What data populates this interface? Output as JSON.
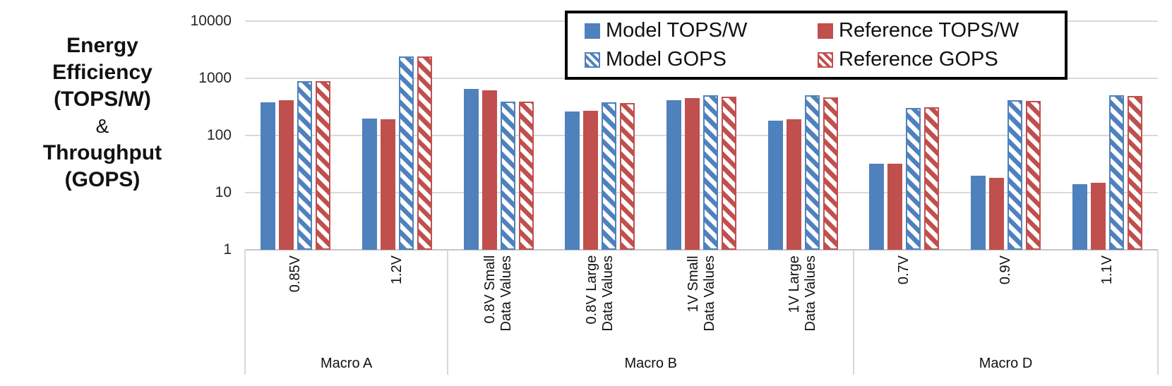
{
  "y_axis": {
    "title_lines": [
      "Energy",
      "Efficiency",
      "(TOPS/W)",
      "&",
      "Throughput",
      "(GOPS)"
    ],
    "tick_labels": [
      "10000",
      "1000",
      "100",
      "10",
      "1"
    ],
    "tick_values": [
      10000,
      1000,
      100,
      10,
      1
    ]
  },
  "legend": {
    "labels": [
      "Model TOPS/W",
      "Reference TOPS/W",
      "Model GOPS",
      "Reference GOPS"
    ]
  },
  "chart_data": {
    "type": "bar",
    "y_scale": "log",
    "ylim": [
      1,
      10000
    ],
    "grid": true,
    "legend_position": "top-right",
    "grid_color": "#D9D9D9",
    "axis_color": "#C6C6C6",
    "categories": [
      "0.85V",
      "1.2V",
      "0.8V Small\nData Values",
      "0.8V Large\nData Values",
      "1V Small\nData Values",
      "1V Large\nData Values",
      "0.7V",
      "0.9V",
      "1.1V"
    ],
    "category_groups": [
      {
        "label": "Macro A",
        "span": 2
      },
      {
        "label": "Macro B",
        "span": 4
      },
      {
        "label": "Macro D",
        "span": 3
      }
    ],
    "series": [
      {
        "name": "Model TOPS/W",
        "pattern": "solid",
        "color": "#4F81BD",
        "values": [
          380,
          200,
          650,
          265,
          420,
          183,
          32,
          20,
          14
        ]
      },
      {
        "name": "Reference TOPS/W",
        "pattern": "solid",
        "color": "#C0504D",
        "values": [
          410,
          195,
          610,
          270,
          450,
          193,
          32,
          18,
          15
        ]
      },
      {
        "name": "Model GOPS",
        "pattern": "hatch",
        "color": "#4F81BD",
        "values": [
          890,
          2400,
          390,
          380,
          500,
          500,
          300,
          415,
          505
        ]
      },
      {
        "name": "Reference GOPS",
        "pattern": "hatch",
        "color": "#C0504D",
        "values": [
          905,
          2450,
          390,
          370,
          478,
          466,
          308,
          400,
          495
        ]
      }
    ]
  }
}
